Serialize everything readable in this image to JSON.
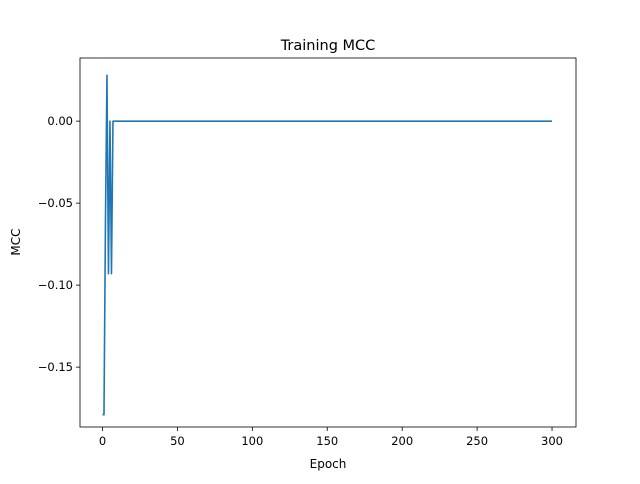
{
  "chart_data": {
    "type": "line",
    "title": "Training MCC",
    "xlabel": "Epoch",
    "ylabel": "MCC",
    "xlim": [
      -15,
      316
    ],
    "ylim": [
      -0.1865,
      0.0385
    ],
    "xticks": [
      0,
      50,
      100,
      150,
      200,
      250,
      300
    ],
    "xtick_labels": [
      "0",
      "50",
      "100",
      "150",
      "200",
      "250",
      "300"
    ],
    "yticks": [
      0.0,
      -0.05,
      -0.1,
      -0.15
    ],
    "ytick_labels": [
      "0.00",
      "−0.05",
      "−0.10",
      "−0.15"
    ],
    "grid": false,
    "legend": "none",
    "series": [
      {
        "color": "#1f77b4",
        "x": [
          0,
          1,
          2,
          3,
          4,
          5,
          6,
          7,
          8,
          10,
          20,
          50,
          100,
          150,
          200,
          250,
          300
        ],
        "y": [
          -0.179,
          -0.179,
          -0.06,
          0.028,
          -0.093,
          0.0,
          -0.093,
          0.0,
          0.0,
          0.0,
          0.0,
          0.0,
          0.0,
          0.0,
          0.0,
          0.0,
          0.0
        ]
      }
    ]
  }
}
